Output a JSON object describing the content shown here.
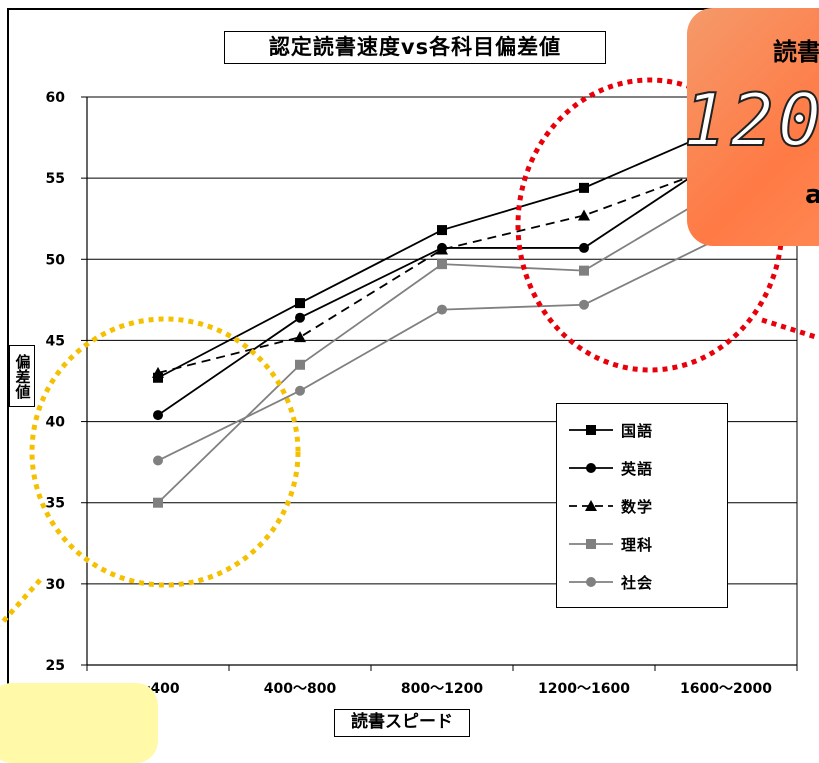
{
  "chart_data": {
    "type": "line",
    "title": "認定読書速度vs各科目偏差値",
    "xlabel": "読書スピード",
    "ylabel": "偏差値",
    "categories": [
      "～400",
      "400～800",
      "800～1200",
      "1200～1600",
      "1600～2000"
    ],
    "ylim": [
      25,
      60
    ],
    "yticks": [
      25,
      30,
      35,
      40,
      45,
      50,
      55,
      60
    ],
    "grid": "horizontal",
    "legend_position": "right",
    "series": [
      {
        "name": "国語",
        "marker": "square",
        "line": "solid",
        "color": "#000000",
        "values": [
          42.7,
          47.3,
          51.8,
          54.4,
          58.2
        ]
      },
      {
        "name": "英語",
        "marker": "circle",
        "line": "solid",
        "color": "#000000",
        "values": [
          40.4,
          46.4,
          50.7,
          50.7,
          56.5
        ]
      },
      {
        "name": "数学",
        "marker": "triangle",
        "line": "dashed",
        "color": "#000000",
        "values": [
          43.0,
          45.2,
          50.6,
          52.7,
          55.9
        ]
      },
      {
        "name": "理科",
        "marker": "square",
        "line": "solid",
        "color": "#808080",
        "values": [
          35.0,
          43.5,
          49.7,
          49.3,
          54.5
        ]
      },
      {
        "name": "社会",
        "marker": "circle",
        "line": "solid",
        "color": "#808080",
        "values": [
          37.6,
          41.9,
          46.9,
          47.2,
          51.5
        ]
      }
    ]
  },
  "callouts": {
    "red": {
      "line1": "読書",
      "line2": "120",
      "line3": "a"
    },
    "yellow": {}
  },
  "colors": {
    "red_dotted_circle": "#e8000a",
    "yellow_dotted_circle": "#f5c000",
    "callout_red_fill": "#ff7a45",
    "callout_yellow_fill": "#fff9a8"
  }
}
